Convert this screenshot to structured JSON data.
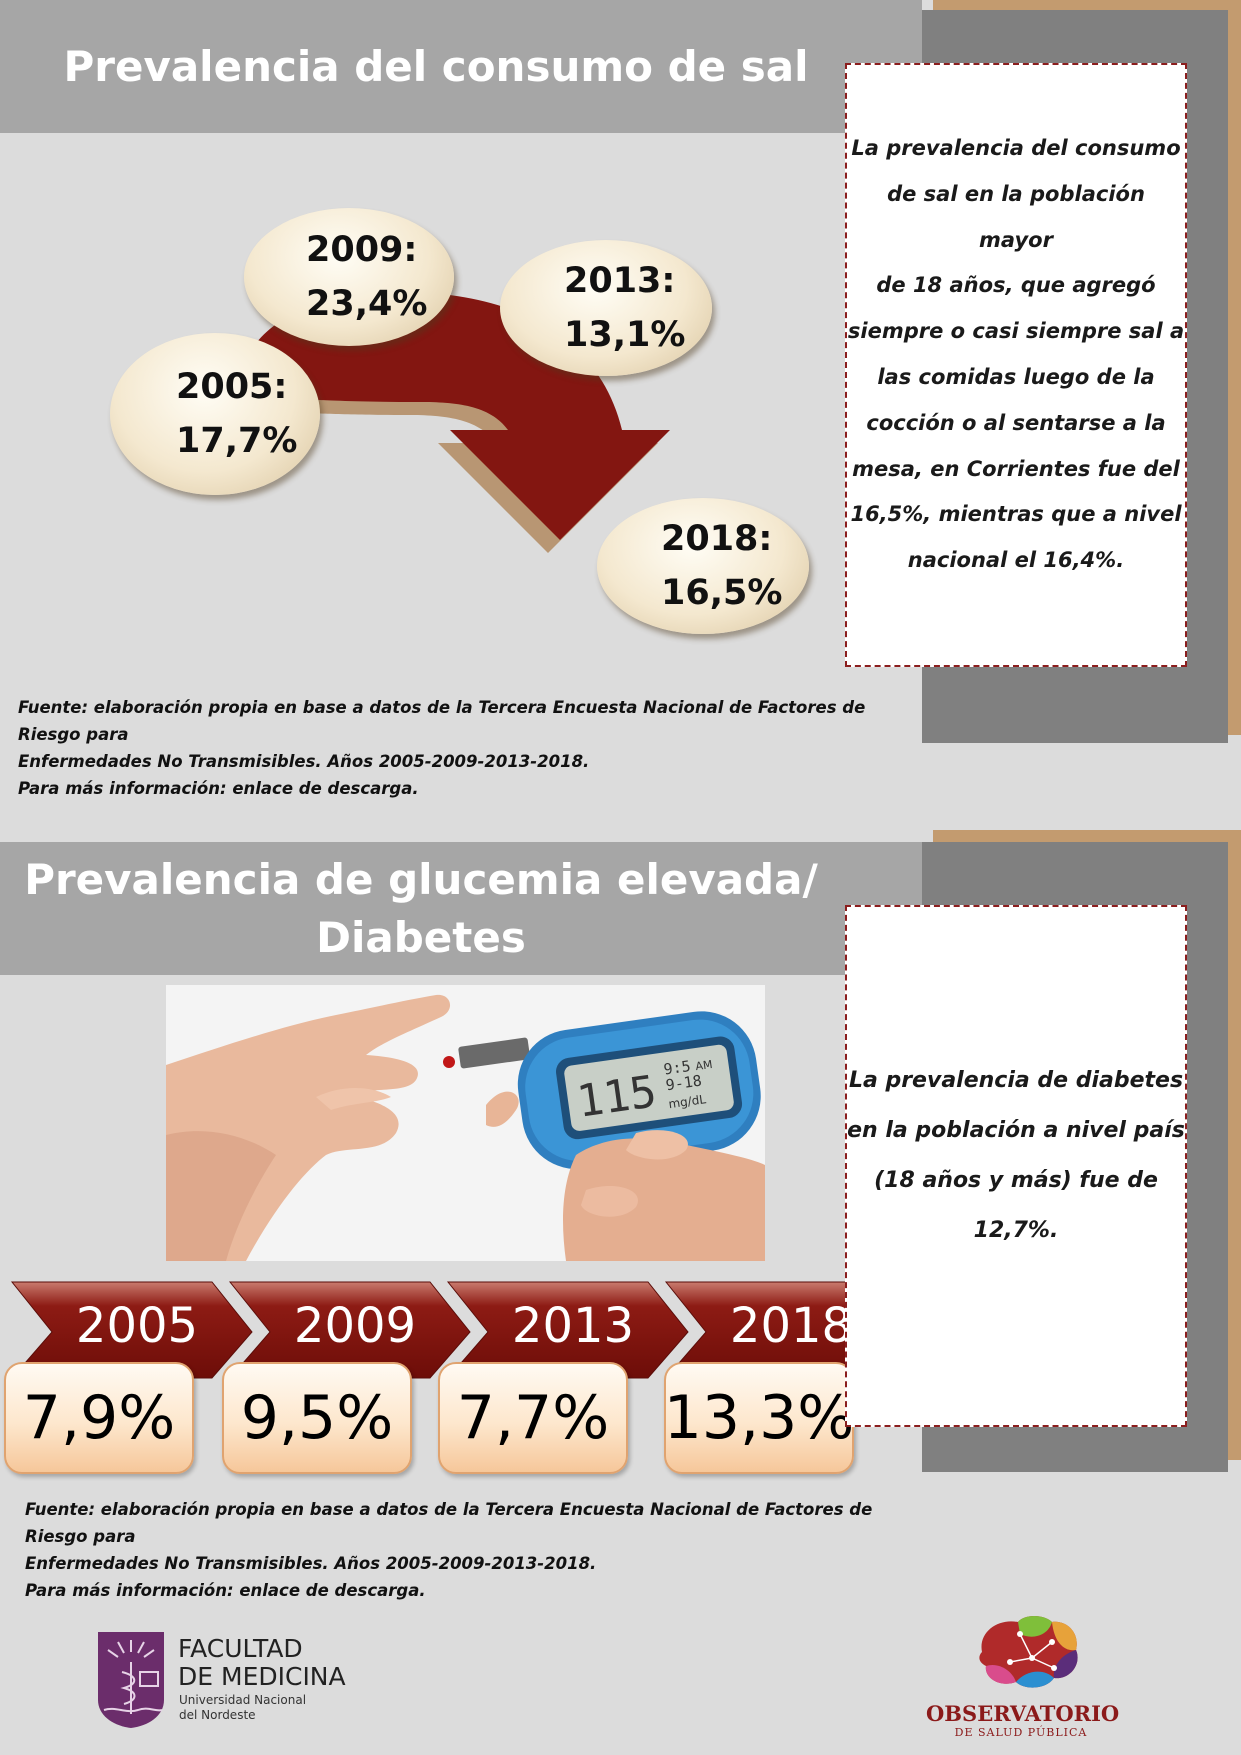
{
  "section1": {
    "title": "Prevalencia del consumo de sal",
    "bubbles": [
      {
        "year": "2005:",
        "value": "17,7%"
      },
      {
        "year": "2009:",
        "value": "23,4%"
      },
      {
        "year": "2013:",
        "value": "13,1%"
      },
      {
        "year": "2018:",
        "value": "16,5%"
      }
    ],
    "info_lines": [
      "La prevalencia del consumo",
      "de sal en la población mayor",
      "de 18 años, que agregó",
      "siempre o casi siempre sal a",
      "las comidas luego de la",
      "cocción o al sentarse a la",
      "mesa, en Corrientes fue del",
      "16,5%, mientras que a nivel",
      "nacional el 16,4%."
    ],
    "source": [
      "Fuente: elaboración propia en base a datos de la Tercera Encuesta Nacional de Factores de Riesgo para",
      "Enfermedades No Transmisibles. Años 2005-2009-2013-2018.",
      "Para más información: enlace de descarga."
    ]
  },
  "section2": {
    "title_line1": "Prevalencia de glucemia elevada/",
    "title_line2": "Diabetes",
    "meter_reading": "115",
    "meter_small1": "9:5",
    "meter_small2": "9-18",
    "meter_am": "AM",
    "meter_unit": "mg/dL",
    "timeline": [
      {
        "year": "2005",
        "value": "7,9%"
      },
      {
        "year": "2009",
        "value": "9,5%"
      },
      {
        "year": "2013",
        "value": "7,7%"
      },
      {
        "year": "2018",
        "value": "13,3%"
      }
    ],
    "info_lines": [
      "La prevalencia de diabetes",
      "en la población a nivel país",
      "(18 años y más) fue de",
      "12,7%."
    ],
    "source": [
      "Fuente: elaboración propia en base a datos de la Tercera Encuesta Nacional de Factores de Riesgo para",
      "Enfermedades No Transmisibles. Años 2005-2009-2013-2018.",
      "Para más información: enlace de descarga."
    ]
  },
  "footer": {
    "left_logo_line1": "FACULTAD",
    "left_logo_line2": "DE MEDICINA",
    "left_logo_line3": "Universidad Nacional",
    "left_logo_line4": "del Nordeste",
    "right_logo_line1": "OBSERVATORIO",
    "right_logo_line2": "DE SALUD PÚBLICA"
  },
  "colors": {
    "accent_red": "#8b1510",
    "band_gray": "#a6a6a6",
    "side_gray": "#808080",
    "side_tan": "#c39b6f",
    "background": "#dcdcdc",
    "logo_purple": "#6b2d6b",
    "observatorio_red": "#8b1a1a"
  }
}
